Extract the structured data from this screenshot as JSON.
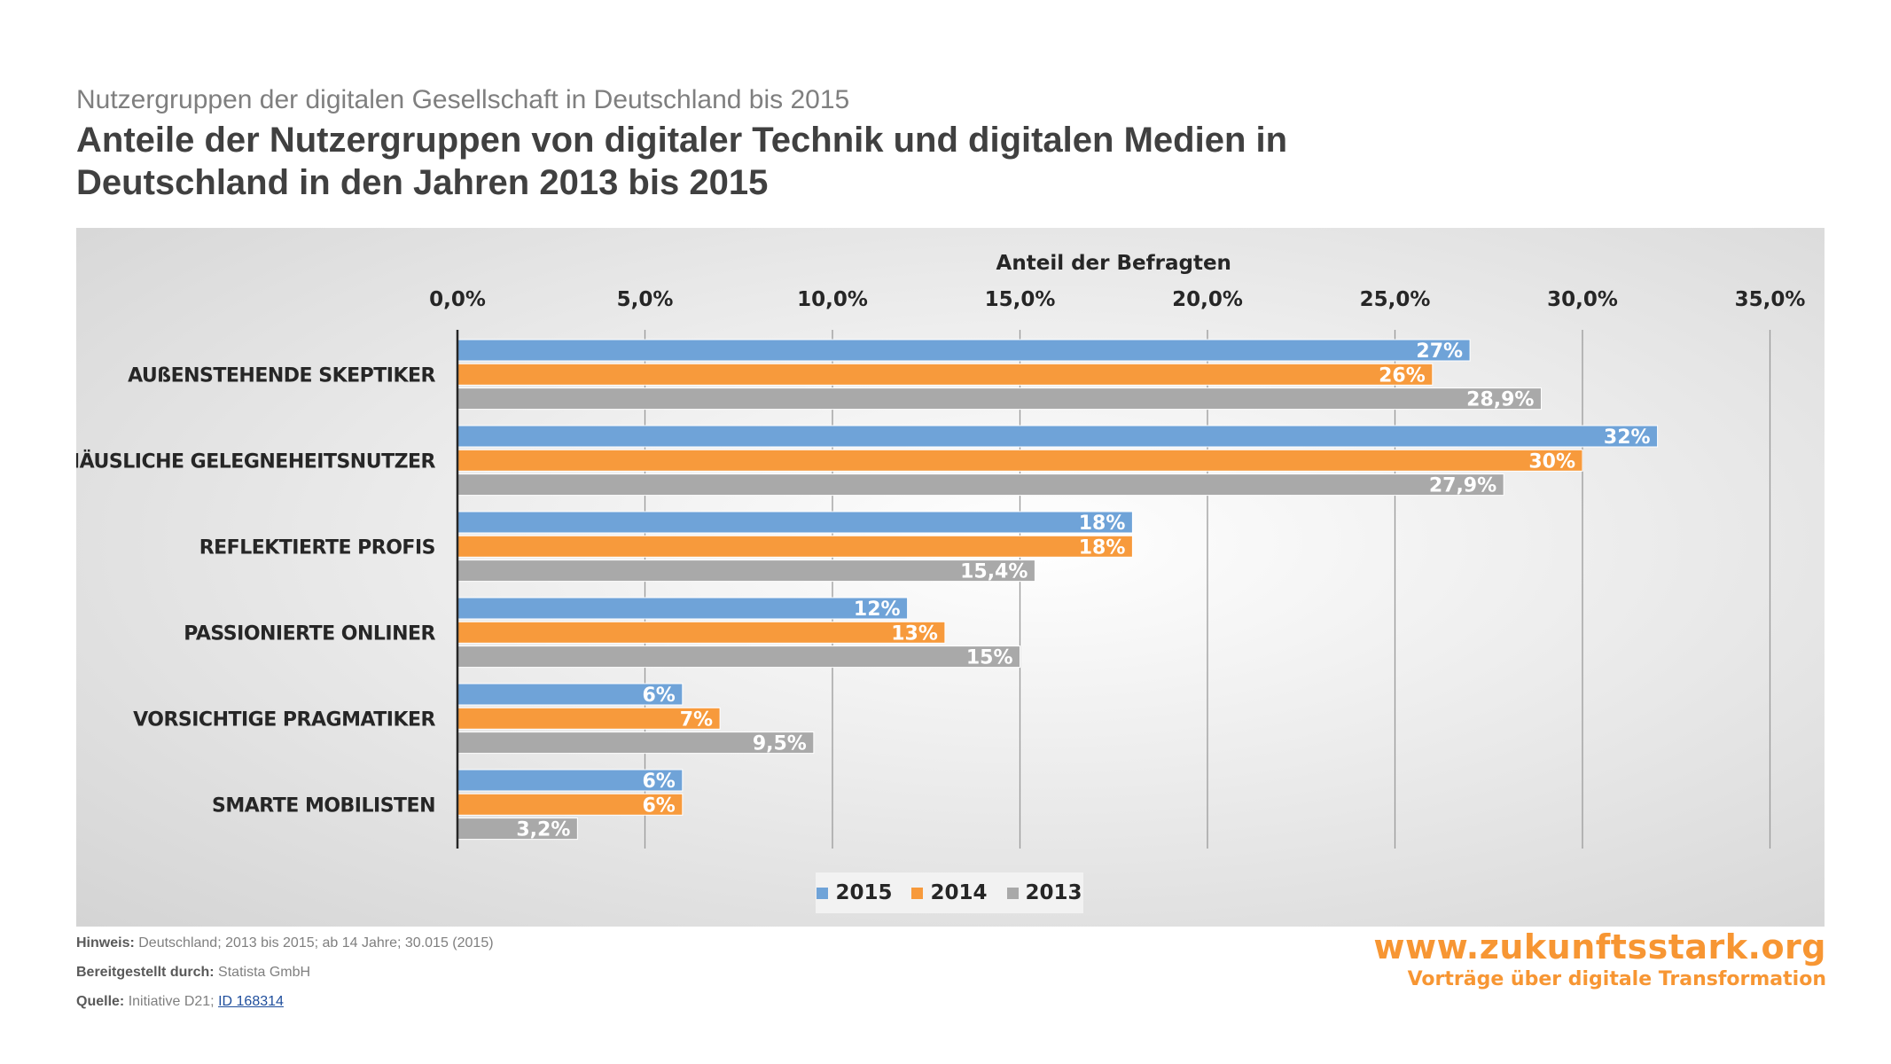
{
  "header": {
    "subtitle": "Nutzergruppen der digitalen Gesellschaft in Deutschland bis 2015",
    "title": "Anteile der Nutzergruppen von digitaler Technik und digitalen Medien in Deutschland in den Jahren 2013 bis 2015"
  },
  "chart_data": {
    "type": "bar",
    "orientation": "horizontal",
    "xlabel": "Anteil der Befragten",
    "xlim": [
      0,
      35
    ],
    "x_ticks": [
      "0,0%",
      "5,0%",
      "10,0%",
      "15,0%",
      "20,0%",
      "25,0%",
      "30,0%",
      "35,0%"
    ],
    "x_axis_position": "top",
    "grid": true,
    "legend_position": "bottom",
    "categories": [
      "AUßENSTEHENDE SKEPTIKER",
      "HÄUSLICHE GELEGNEHEITSNUTZER",
      "REFLEKTIERTE PROFIS",
      "PASSIONIERTE ONLINER",
      "VORSICHTIGE PRAGMATIKER",
      "SMARTE MOBILISTEN"
    ],
    "series": [
      {
        "name": "2015",
        "color": "#6fa3d8",
        "values": [
          27,
          32,
          18,
          12,
          6,
          6
        ],
        "labels": [
          "27%",
          "32%",
          "18%",
          "12%",
          "6%",
          "6%"
        ]
      },
      {
        "name": "2014",
        "color": "#f79a3c",
        "values": [
          26,
          30,
          18,
          13,
          7,
          6
        ],
        "labels": [
          "26%",
          "30%",
          "18%",
          "13%",
          "7%",
          "6%"
        ]
      },
      {
        "name": "2013",
        "color": "#a9a9a9",
        "values": [
          28.9,
          27.9,
          15.4,
          15,
          9.5,
          3.2
        ],
        "labels": [
          "28,9%",
          "27,9%",
          "15,4%",
          "15%",
          "9,5%",
          "3,2%"
        ]
      }
    ]
  },
  "footer": {
    "hinweis_label": "Hinweis:",
    "hinweis_text": "Deutschland; 2013 bis 2015; ab 14 Jahre; 30.015 (2015)",
    "bereitgestellt_label": "Bereitgestellt durch:",
    "bereitgestellt_text": "Statista GmbH",
    "quelle_label": "Quelle:",
    "quelle_text": "Initiative D21;",
    "quelle_link": "ID 168314"
  },
  "brand": {
    "url": "www.zukunftsstark.org",
    "claim": "Vorträge über digitale Transformation"
  }
}
